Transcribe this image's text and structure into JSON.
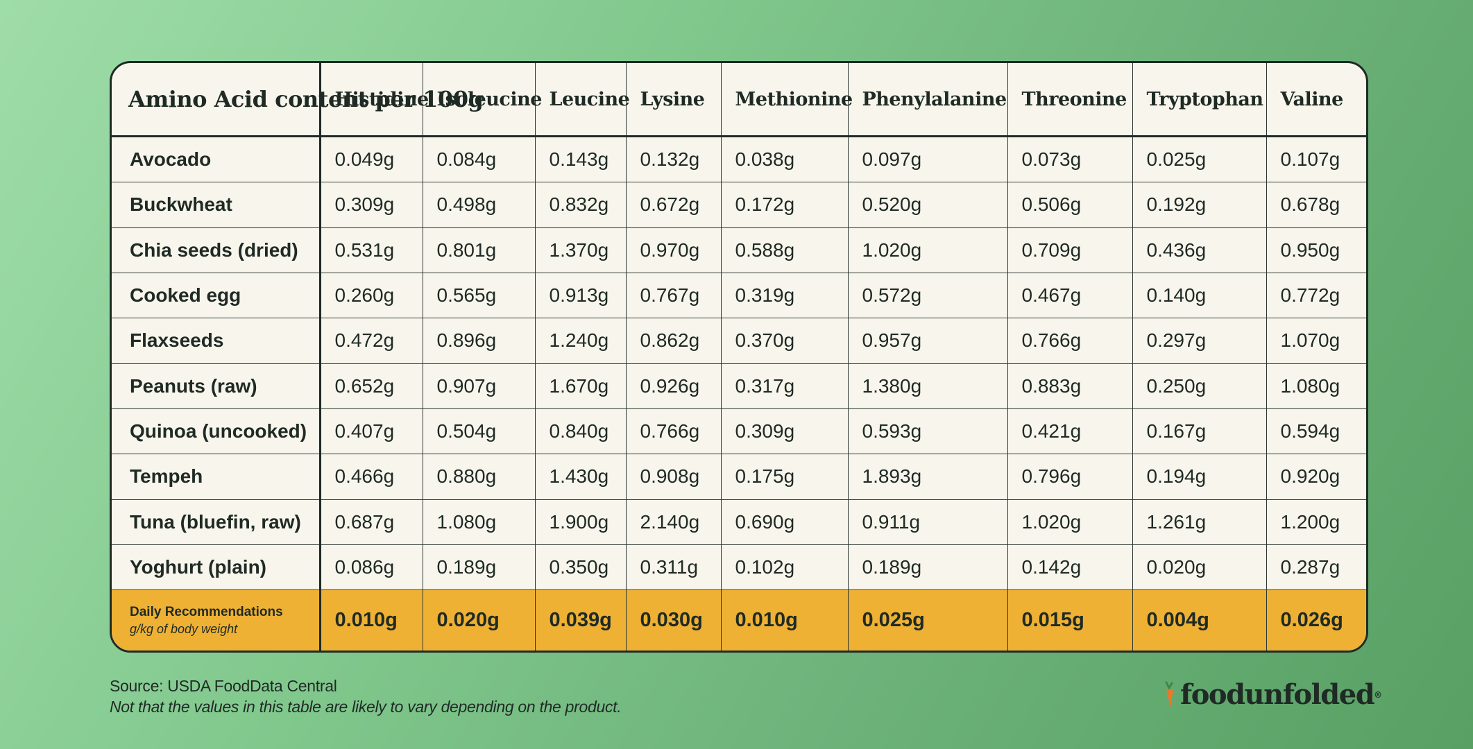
{
  "table": {
    "corner_header": "Amino Acid content per 100g",
    "columns": [
      "Histidine",
      "Isoleucine",
      "Leucine",
      "Lysine",
      "Methionine",
      "Phenylalanine",
      "Threonine",
      "Tryptophan",
      "Valine"
    ],
    "rows": [
      {
        "food": "Avocado",
        "values": [
          "0.049g",
          "0.084g",
          "0.143g",
          "0.132g",
          "0.038g",
          "0.097g",
          "0.073g",
          "0.025g",
          "0.107g"
        ]
      },
      {
        "food": "Buckwheat",
        "values": [
          "0.309g",
          "0.498g",
          "0.832g",
          "0.672g",
          "0.172g",
          "0.520g",
          "0.506g",
          "0.192g",
          "0.678g"
        ]
      },
      {
        "food": "Chia seeds (dried)",
        "values": [
          "0.531g",
          "0.801g",
          "1.370g",
          "0.970g",
          "0.588g",
          "1.020g",
          "0.709g",
          "0.436g",
          "0.950g"
        ]
      },
      {
        "food": "Cooked egg",
        "values": [
          "0.260g",
          "0.565g",
          "0.913g",
          "0.767g",
          "0.319g",
          "0.572g",
          "0.467g",
          "0.140g",
          "0.772g"
        ]
      },
      {
        "food": "Flaxseeds",
        "values": [
          "0.472g",
          "0.896g",
          "1.240g",
          "0.862g",
          "0.370g",
          "0.957g",
          "0.766g",
          "0.297g",
          "1.070g"
        ]
      },
      {
        "food": "Peanuts (raw)",
        "values": [
          "0.652g",
          "0.907g",
          "1.670g",
          "0.926g",
          "0.317g",
          "1.380g",
          "0.883g",
          "0.250g",
          "1.080g"
        ]
      },
      {
        "food": "Quinoa (uncooked)",
        "values": [
          "0.407g",
          "0.504g",
          "0.840g",
          "0.766g",
          "0.309g",
          "0.593g",
          "0.421g",
          "0.167g",
          "0.594g"
        ]
      },
      {
        "food": "Tempeh",
        "values": [
          "0.466g",
          "0.880g",
          "1.430g",
          "0.908g",
          "0.175g",
          "1.893g",
          "0.796g",
          "0.194g",
          "0.920g"
        ]
      },
      {
        "food": "Tuna (bluefin, raw)",
        "values": [
          "0.687g",
          "1.080g",
          "1.900g",
          "2.140g",
          "0.690g",
          "0.911g",
          "1.020g",
          "1.261g",
          "1.200g"
        ]
      },
      {
        "food": "Yoghurt (plain)",
        "values": [
          "0.086g",
          "0.189g",
          "0.350g",
          "0.311g",
          "0.102g",
          "0.189g",
          "0.142g",
          "0.020g",
          "0.287g"
        ]
      }
    ],
    "recommendation": {
      "title": "Daily Recommendations",
      "unit": "g/kg of body weight",
      "values": [
        "0.010g",
        "0.020g",
        "0.039g",
        "0.030g",
        "0.010g",
        "0.025g",
        "0.015g",
        "0.004g",
        "0.026g"
      ]
    }
  },
  "footer": {
    "source": "Source: USDA FoodData Central",
    "note": "Not that the values in this table are likely to vary depending on the product."
  },
  "logo": {
    "text": "foodunfolded",
    "mark": "®",
    "icon": "carrot-icon"
  },
  "colors": {
    "highlight_row": "#efb133",
    "table_bg": "#f8f6ec",
    "background_green": "#6db37a"
  }
}
